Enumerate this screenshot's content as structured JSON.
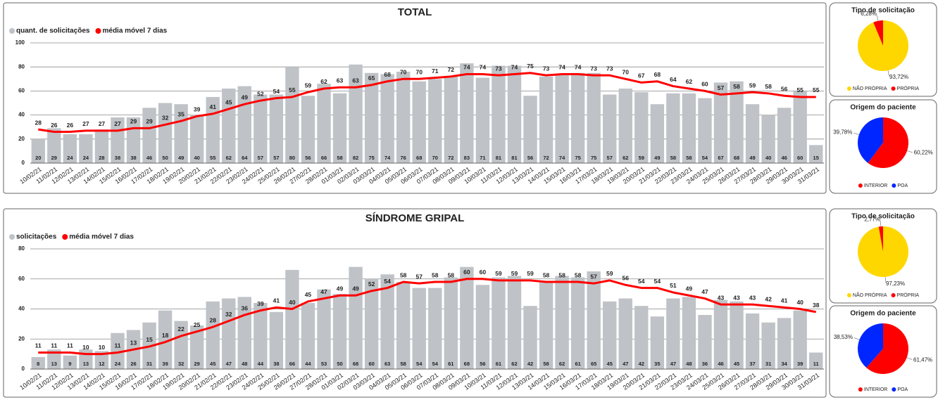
{
  "chart_data": [
    {
      "type": "bar",
      "title": "TOTAL",
      "categories": [
        "10/02/21",
        "11/02/21",
        "12/02/21",
        "13/02/21",
        "14/02/21",
        "15/02/21",
        "16/02/21",
        "17/02/21",
        "18/02/21",
        "19/02/21",
        "20/02/21",
        "21/02/21",
        "22/02/21",
        "23/02/21",
        "24/02/21",
        "25/02/21",
        "26/02/21",
        "27/02/21",
        "28/02/21",
        "01/03/21",
        "02/03/21",
        "03/03/21",
        "04/03/21",
        "05/03/21",
        "06/03/21",
        "07/03/21",
        "08/03/21",
        "09/03/21",
        "10/03/21",
        "11/03/21",
        "12/03/21",
        "13/03/21",
        "14/03/21",
        "15/03/21",
        "16/03/21",
        "17/03/21",
        "18/03/21",
        "19/03/21",
        "20/03/21",
        "21/03/21",
        "22/03/21",
        "23/03/21",
        "24/03/21",
        "25/03/21",
        "26/03/21",
        "27/03/21",
        "28/03/21",
        "29/03/21",
        "30/03/21",
        "31/03/21"
      ],
      "series": [
        {
          "name": "quant. de solicitações",
          "color": "#bfc3c7",
          "values": [
            20,
            29,
            24,
            24,
            28,
            38,
            38,
            46,
            50,
            49,
            40,
            55,
            62,
            64,
            57,
            57,
            80,
            56,
            66,
            58,
            82,
            75,
            74,
            76,
            68,
            70,
            72,
            83,
            71,
            81,
            81,
            56,
            72,
            74,
            75,
            75,
            57,
            62,
            59,
            49,
            58,
            58,
            54,
            67,
            68,
            49,
            40,
            46,
            60,
            15
          ]
        },
        {
          "name": "média móvel 7 dias",
          "color": "#ff0000",
          "type": "line",
          "values": [
            28,
            26,
            26,
            27,
            27,
            27,
            29,
            29,
            32,
            35,
            39,
            41,
            45,
            49,
            52,
            54,
            55,
            59,
            62,
            63,
            63,
            65,
            68,
            70,
            70,
            71,
            72,
            74,
            74,
            73,
            74,
            75,
            73,
            74,
            74,
            73,
            73,
            70,
            67,
            68,
            64,
            62,
            60,
            57,
            58,
            59,
            58,
            56,
            55,
            55
          ]
        }
      ],
      "ylim": [
        0,
        100
      ],
      "yticks": [
        0,
        20,
        40,
        60,
        80,
        100
      ],
      "grid": true
    },
    {
      "type": "pie",
      "title": "Tipo de solicitação",
      "categories": [
        "NÃO PRÓPRIA",
        "PRÓPRIA"
      ],
      "values": [
        93.72,
        6.28
      ],
      "value_labels": [
        "93,72%",
        "6,28%"
      ],
      "colors": [
        "#ffd700",
        "#ff0000"
      ]
    },
    {
      "type": "pie",
      "title": "Origem do paciente",
      "categories": [
        "INTERIOR",
        "POA"
      ],
      "values": [
        60.22,
        39.78
      ],
      "value_labels": [
        "60,22%",
        "39,78%"
      ],
      "colors": [
        "#ff0000",
        "#0026ff"
      ]
    },
    {
      "type": "bar",
      "title": "SÍNDROME GRIPAL",
      "categories": [
        "10/02/21",
        "11/02/21",
        "12/02/21",
        "13/02/21",
        "14/02/21",
        "15/02/21",
        "16/02/21",
        "17/02/21",
        "18/02/21",
        "19/02/21",
        "20/02/21",
        "21/02/21",
        "22/02/21",
        "23/02/21",
        "24/02/21",
        "25/02/21",
        "26/02/21",
        "27/02/21",
        "28/02/21",
        "01/03/21",
        "02/03/21",
        "03/03/21",
        "04/03/21",
        "05/03/21",
        "06/03/21",
        "07/03/21",
        "08/03/21",
        "09/03/21",
        "10/03/21",
        "11/03/21",
        "12/03/21",
        "13/03/21",
        "14/03/21",
        "15/03/21",
        "16/03/21",
        "17/03/21",
        "18/03/21",
        "19/03/21",
        "20/03/21",
        "21/03/21",
        "22/03/21",
        "23/03/21",
        "24/03/21",
        "25/03/21",
        "26/03/21",
        "27/03/21",
        "28/03/21",
        "29/03/21",
        "30/03/21",
        "31/03/21"
      ],
      "series": [
        {
          "name": "solicitações",
          "color": "#bfc3c7",
          "values": [
            8,
            13,
            9,
            13,
            12,
            24,
            26,
            31,
            39,
            32,
            29,
            45,
            47,
            48,
            44,
            38,
            66,
            44,
            53,
            50,
            68,
            60,
            63,
            58,
            54,
            54,
            61,
            68,
            56,
            61,
            62,
            42,
            58,
            62,
            61,
            65,
            45,
            47,
            42,
            35,
            47,
            48,
            36,
            46,
            45,
            37,
            31,
            34,
            39,
            11
          ]
        },
        {
          "name": "média móvel 7 dias",
          "color": "#ff0000",
          "type": "line",
          "values": [
            11,
            11,
            11,
            10,
            10,
            11,
            13,
            15,
            18,
            22,
            25,
            28,
            32,
            36,
            39,
            41,
            40,
            45,
            47,
            49,
            49,
            52,
            54,
            58,
            57,
            58,
            58,
            60,
            60,
            59,
            59,
            59,
            58,
            58,
            58,
            57,
            59,
            56,
            54,
            54,
            51,
            49,
            47,
            43,
            43,
            43,
            42,
            41,
            40,
            38
          ]
        }
      ],
      "ylim": [
        0,
        80
      ],
      "yticks": [
        0,
        20,
        40,
        60,
        80
      ],
      "grid": true
    },
    {
      "type": "pie",
      "title": "Tipo de solicitação",
      "categories": [
        "NÃO PRÓPRIA",
        "PRÓPRIA"
      ],
      "values": [
        97.23,
        2.77
      ],
      "value_labels": [
        "97,23%",
        "2,77%"
      ],
      "colors": [
        "#ffd700",
        "#ff0000"
      ]
    },
    {
      "type": "pie",
      "title": "Origem do paciente",
      "categories": [
        "INTERIOR",
        "POA"
      ],
      "values": [
        61.47,
        38.53
      ],
      "value_labels": [
        "61,47%",
        "38,53%"
      ],
      "colors": [
        "#ff0000",
        "#0026ff"
      ]
    }
  ]
}
